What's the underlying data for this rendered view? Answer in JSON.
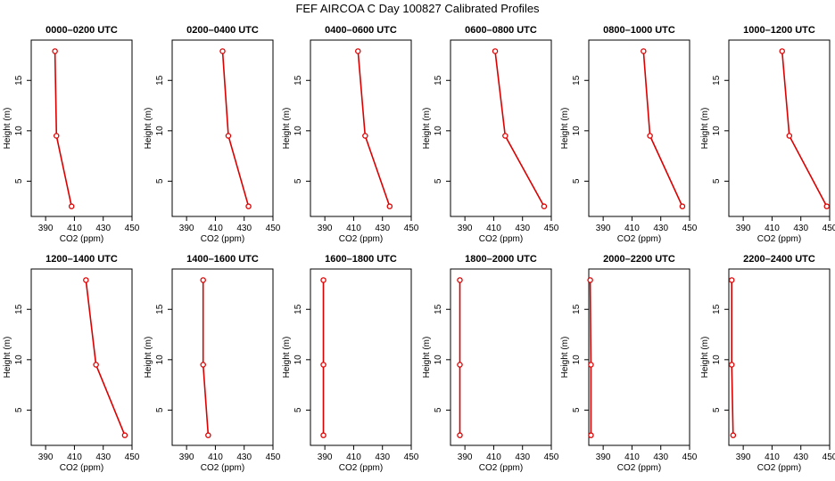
{
  "figure": {
    "title": "FEF AIRCOA C  Day 100827  Calibrated Profiles",
    "colors": {
      "line": "#dd0000",
      "axis": "#000000",
      "background": "#ffffff"
    }
  },
  "chart_data": [
    {
      "type": "line",
      "title": "0000–0200 UTC",
      "xlabel": "CO2 (ppm)",
      "ylabel": "Height (m)",
      "xlim": [
        380,
        450
      ],
      "ylim": [
        1.5,
        19
      ],
      "xticks": [
        390,
        410,
        430,
        450
      ],
      "yticks": [
        5,
        10,
        15
      ],
      "x": [
        396.5,
        397.5,
        408
      ],
      "y": [
        17.9,
        9.5,
        2.5
      ]
    },
    {
      "type": "line",
      "title": "0200–0400 UTC",
      "xlabel": "CO2 (ppm)",
      "ylabel": "Height (m)",
      "xlim": [
        380,
        450
      ],
      "ylim": [
        1.5,
        19
      ],
      "xticks": [
        390,
        410,
        430,
        450
      ],
      "yticks": [
        5,
        10,
        15
      ],
      "x": [
        415,
        419,
        433
      ],
      "y": [
        17.9,
        9.5,
        2.5
      ]
    },
    {
      "type": "line",
      "title": "0400–0600 UTC",
      "xlabel": "CO2 (ppm)",
      "ylabel": "Height (m)",
      "xlim": [
        380,
        450
      ],
      "ylim": [
        1.5,
        19
      ],
      "xticks": [
        390,
        410,
        430,
        450
      ],
      "yticks": [
        5,
        10,
        15
      ],
      "x": [
        413,
        418,
        435
      ],
      "y": [
        17.9,
        9.5,
        2.5
      ]
    },
    {
      "type": "line",
      "title": "0600–0800 UTC",
      "xlabel": "CO2 (ppm)",
      "ylabel": "Height (m)",
      "xlim": [
        380,
        450
      ],
      "ylim": [
        1.5,
        19
      ],
      "xticks": [
        390,
        410,
        430,
        450
      ],
      "yticks": [
        5,
        10,
        15
      ],
      "x": [
        411,
        418,
        445
      ],
      "y": [
        17.9,
        9.5,
        2.5
      ]
    },
    {
      "type": "line",
      "title": "0800–1000 UTC",
      "xlabel": "CO2 (ppm)",
      "ylabel": "Height (m)",
      "xlim": [
        380,
        450
      ],
      "ylim": [
        1.5,
        19
      ],
      "xticks": [
        390,
        410,
        430,
        450
      ],
      "yticks": [
        5,
        10,
        15
      ],
      "x": [
        418,
        422.5,
        445
      ],
      "y": [
        17.9,
        9.5,
        2.5
      ]
    },
    {
      "type": "line",
      "title": "1000–1200 UTC",
      "xlabel": "CO2 (ppm)",
      "ylabel": "Height (m)",
      "xlim": [
        380,
        450
      ],
      "ylim": [
        1.5,
        19
      ],
      "xticks": [
        390,
        410,
        430,
        450
      ],
      "yticks": [
        5,
        10,
        15
      ],
      "x": [
        417,
        422,
        448
      ],
      "y": [
        17.9,
        9.5,
        2.5
      ]
    },
    {
      "type": "line",
      "title": "1200–1400 UTC",
      "xlabel": "CO2 (ppm)",
      "ylabel": "Height (m)",
      "xlim": [
        380,
        450
      ],
      "ylim": [
        1.5,
        19
      ],
      "xticks": [
        390,
        410,
        430,
        450
      ],
      "yticks": [
        5,
        10,
        15
      ],
      "x": [
        418,
        425,
        445
      ],
      "y": [
        17.9,
        9.5,
        2.5
      ]
    },
    {
      "type": "line",
      "title": "1400–1600 UTC",
      "xlabel": "CO2 (ppm)",
      "ylabel": "Height (m)",
      "xlim": [
        380,
        450
      ],
      "ylim": [
        1.5,
        19
      ],
      "xticks": [
        390,
        410,
        430,
        450
      ],
      "yticks": [
        5,
        10,
        15
      ],
      "x": [
        401.5,
        401.5,
        405
      ],
      "y": [
        17.9,
        9.5,
        2.5
      ]
    },
    {
      "type": "line",
      "title": "1600–1800 UTC",
      "xlabel": "CO2 (ppm)",
      "ylabel": "Height (m)",
      "xlim": [
        380,
        450
      ],
      "ylim": [
        1.5,
        19
      ],
      "xticks": [
        390,
        410,
        430,
        450
      ],
      "yticks": [
        5,
        10,
        15
      ],
      "x": [
        389,
        389,
        389
      ],
      "y": [
        17.9,
        9.5,
        2.5
      ]
    },
    {
      "type": "line",
      "title": "1800–2000 UTC",
      "xlabel": "CO2 (ppm)",
      "ylabel": "Height (m)",
      "xlim": [
        380,
        450
      ],
      "ylim": [
        1.5,
        19
      ],
      "xticks": [
        390,
        410,
        430,
        450
      ],
      "yticks": [
        5,
        10,
        15
      ],
      "x": [
        386.5,
        386.5,
        386.5
      ],
      "y": [
        17.9,
        9.5,
        2.5
      ]
    },
    {
      "type": "line",
      "title": "2000–2200 UTC",
      "xlabel": "CO2 (ppm)",
      "ylabel": "Height (m)",
      "xlim": [
        380,
        450
      ],
      "ylim": [
        1.5,
        19
      ],
      "xticks": [
        390,
        410,
        430,
        450
      ],
      "yticks": [
        5,
        10,
        15
      ],
      "x": [
        381,
        381.5,
        381.5
      ],
      "y": [
        17.9,
        9.5,
        2.5
      ]
    },
    {
      "type": "line",
      "title": "2200–2400 UTC",
      "xlabel": "CO2 (ppm)",
      "ylabel": "Height (m)",
      "xlim": [
        380,
        450
      ],
      "ylim": [
        1.5,
        19
      ],
      "xticks": [
        390,
        410,
        430,
        450
      ],
      "yticks": [
        5,
        10,
        15
      ],
      "x": [
        382,
        382,
        383
      ],
      "y": [
        17.9,
        9.5,
        2.5
      ]
    }
  ]
}
